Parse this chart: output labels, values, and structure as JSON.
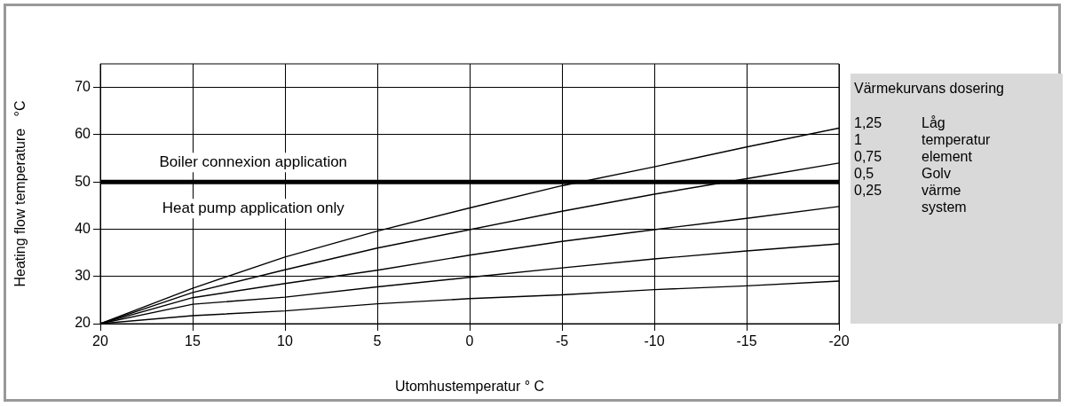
{
  "chart_data": {
    "type": "line",
    "xlabel": "Utomhustemperatur ° C",
    "ylabel": "Heating flow temperature   °C",
    "x": [
      20,
      15,
      10,
      5,
      0,
      -5,
      -10,
      -15,
      -20
    ],
    "series": [
      {
        "color": "#000000",
        "values": [
          20,
          27.5,
          34.1,
          39.6,
          44.5,
          49.2,
          53.2,
          57.4,
          61.4
        ]
      },
      {
        "color": "#000000",
        "values": [
          20,
          26.6,
          31.4,
          36.0,
          39.9,
          43.8,
          47.4,
          50.7,
          54.0
        ]
      },
      {
        "color": "#000000",
        "values": [
          20,
          25.5,
          28.5,
          31.3,
          34.5,
          37.4,
          39.9,
          42.3,
          44.8
        ]
      },
      {
        "color": "#000000",
        "values": [
          20,
          24.1,
          25.6,
          27.8,
          29.8,
          31.8,
          33.7,
          35.4,
          36.9
        ]
      },
      {
        "color": "#000000",
        "values": [
          20,
          21.7,
          22.7,
          24.2,
          25.3,
          26.1,
          27.2,
          28.0,
          29.0
        ]
      }
    ],
    "xlim": [
      20,
      -20
    ],
    "xticks": [
      20,
      15,
      10,
      5,
      0,
      -5,
      -10,
      -15,
      -20
    ],
    "ylim": [
      20,
      75
    ],
    "yticks": [
      20,
      30,
      40,
      50,
      60,
      70
    ],
    "grid": true,
    "legend": false,
    "marker": "none",
    "line_style": "solid",
    "ref_lines": [
      {
        "axis": "y",
        "value": 50,
        "color": "#000000"
      }
    ],
    "annotations": [
      "Boiler connexion application",
      "Heat pump application only",
      "Värmekurvans dosering",
      "1,25\tLåg",
      "1\ttemperatur",
      "0,75\telement",
      "0,5\tGolv",
      "0,25\tvärme",
      "\tsystem"
    ]
  }
}
